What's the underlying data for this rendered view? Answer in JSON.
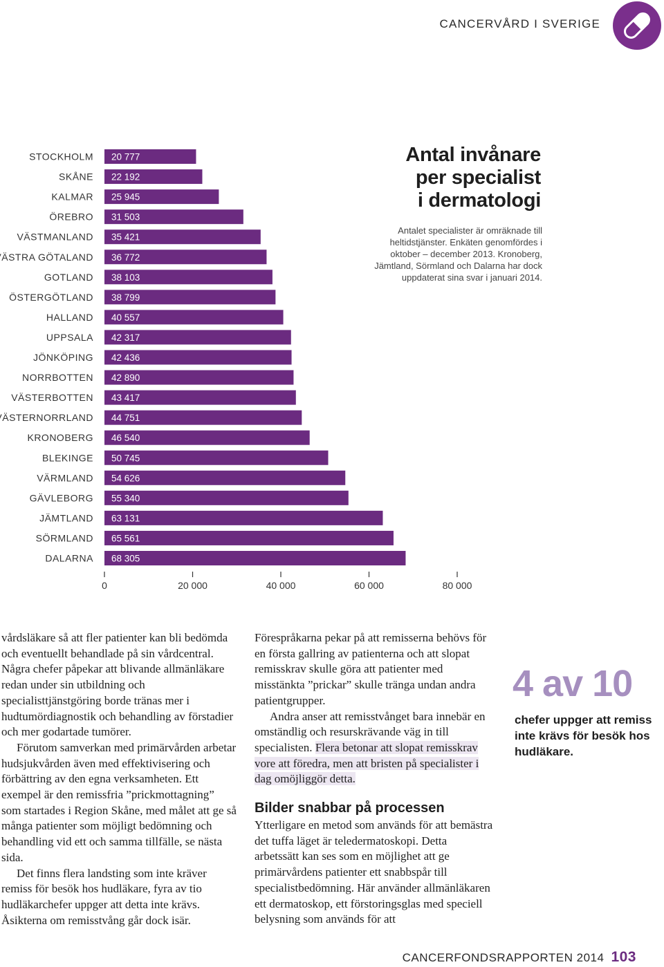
{
  "header": {
    "title": "CANCERVÅRD I SVERIGE",
    "icon": "pill-icon"
  },
  "chart_data": {
    "type": "bar",
    "orientation": "horizontal",
    "title": "Antal invånare\nper specialist\ni dermatologi",
    "note": "Antalet specialister är omräknade till heltidstjänster. Enkäten genomfördes i oktober – december 2013. Kronoberg, Jämtland, Sörmland och Dalarna har dock uppdaterat sina svar i januari 2014.",
    "categories": [
      "STOCKHOLM",
      "SKÅNE",
      "KALMAR",
      "ÖREBRO",
      "VÄSTMANLAND",
      "VÄSTRA GÖTALAND",
      "GOTLAND",
      "ÖSTERGÖTLAND",
      "HALLAND",
      "UPPSALA",
      "JÖNKÖPING",
      "NORRBOTTEN",
      "VÄSTERBOTTEN",
      "VÄSTERNORRLAND",
      "KRONOBERG",
      "BLEKINGE",
      "VÄRMLAND",
      "GÄVLEBORG",
      "JÄMTLAND",
      "SÖRMLAND",
      "DALARNA"
    ],
    "values": [
      20777,
      22192,
      25945,
      31503,
      35421,
      36772,
      38103,
      38799,
      40557,
      42317,
      42436,
      42890,
      43417,
      44751,
      46540,
      50745,
      54626,
      55340,
      63131,
      65561,
      68305
    ],
    "value_labels": [
      "20 777",
      "22 192",
      "25 945",
      "31 503",
      "35 421",
      "36 772",
      "38 103",
      "38 799",
      "40 557",
      "42 317",
      "42 436",
      "42 890",
      "43 417",
      "44 751",
      "46 540",
      "50 745",
      "54 626",
      "55 340",
      "63 131",
      "65 561",
      "68 305"
    ],
    "xlim": [
      0,
      80000
    ],
    "xticks": [
      0,
      20000,
      40000,
      60000,
      80000
    ],
    "xtick_labels": [
      "0",
      "20 000",
      "40 000",
      "60 000",
      "80 000"
    ],
    "bar_color": "#6b2b80",
    "label_color": "#ffffff"
  },
  "article": {
    "left_paragraphs": [
      "vårdsläkare så att fler patienter kan bli bedömda och eventuellt behandlade på sin vårdcentral. Några chefer påpekar att blivande allmänläkare redan under sin utbildning och specialisttjänstgöring borde tränas mer i hudtumördiagnostik och behandling av förstadier och mer godartade tumörer.",
      "Förutom samverkan med primärvården arbetar hudsjukvården även med effektivisering och förbättring av den egna verksamheten. Ett exempel är den remissfria ”prickmottagning” som startades i Region Skåne, med målet att ge så många patienter som möjligt bedömning och behandling vid ett och samma tillfälle, se nästa sida.",
      "Det finns flera landsting som inte kräver remiss för besök hos hudläkare, fyra av tio hudläkarchefer uppger att detta inte krävs. Åsikterna om remisstvång går dock isär."
    ],
    "right_p1": "Förespråkarna pekar på att remisserna behövs för en första gallring av patienterna och att slopat remisskrav skulle göra att patienter med misstänkta ”prickar” skulle tränga undan andra patientgrupper.",
    "right_p2_start": "Andra anser att remisstvånget bara innebär en omständlig och resurskrävande väg in till specialisten.",
    "right_p2_highlight": "Flera betonar att slopat remisskrav vore att föredra, men att bristen på specialister i dag omöjliggör detta.",
    "subheading": "Bilder snabbar på processen",
    "right_p3": "Ytterligare en metod som används för att bemästra det tuffa läget är teledermatoskopi. Detta arbetssätt kan ses som en möjlighet att ge primärvårdens patienter ett snabbspår till specialistbedömning. Här använder allmänläkaren ett dermatoskop, ett förstoringsglas med speciell belysning som används för att"
  },
  "stat": {
    "big": "4 av 10",
    "text": "chefer uppger att remiss inte krävs för besök hos hudläkare."
  },
  "footer": {
    "report": "CANCERFONDSRAPPORTEN 2014",
    "page": "103"
  }
}
